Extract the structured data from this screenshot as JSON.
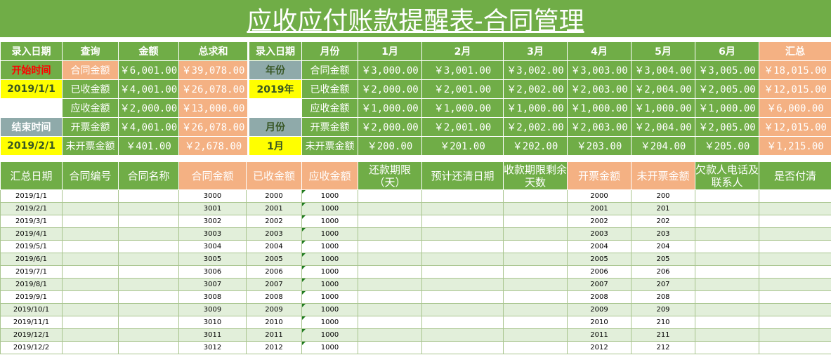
{
  "title": "应收应付账款提醒表-合同管理",
  "left": {
    "headers": [
      "录入日期",
      "查询",
      "金额",
      "总求和"
    ],
    "start_label": "开始时间",
    "start_date": "2019/1/1",
    "end_label": "结束时间",
    "end_date": "2019/2/1",
    "rows": [
      {
        "label": "合同金额",
        "amount": "￥6,001.00",
        "total": "￥39,078.00"
      },
      {
        "label": "已收金额",
        "amount": "￥4,001.00",
        "total": "￥26,078.00"
      },
      {
        "label": "应收金额",
        "amount": "￥2,000.00",
        "total": "￥13,000.00"
      },
      {
        "label": "开票金额",
        "amount": "￥4,001.00",
        "total": "￥26,078.00"
      },
      {
        "label": "未开票金额",
        "amount": "￥401.00",
        "total": "￥2,678.00"
      }
    ]
  },
  "right": {
    "headers": [
      "录入日期",
      "月份",
      "1月",
      "2月",
      "3月",
      "4月",
      "5月",
      "6月",
      "汇总"
    ],
    "year_label": "年份",
    "year_value": "2019年",
    "month_label": "月份",
    "month_value": "1月",
    "rows": [
      {
        "label": "合同金额",
        "values": [
          "￥3,000.00",
          "￥3,001.00",
          "￥3,002.00",
          "￥3,003.00",
          "￥3,004.00",
          "￥3,005.00"
        ],
        "total": "￥18,015.00"
      },
      {
        "label": "已收金额",
        "values": [
          "￥2,000.00",
          "￥2,001.00",
          "￥2,002.00",
          "￥2,003.00",
          "￥2,004.00",
          "￥2,005.00"
        ],
        "total": "￥12,015.00"
      },
      {
        "label": "应收金额",
        "values": [
          "￥1,000.00",
          "￥1,000.00",
          "￥1,000.00",
          "￥1,000.00",
          "￥1,000.00",
          "￥1,000.00"
        ],
        "total": "￥6,000.00"
      },
      {
        "label": "开票金额",
        "values": [
          "￥2,000.00",
          "￥2,001.00",
          "￥2,002.00",
          "￥2,003.00",
          "￥2,004.00",
          "￥2,005.00"
        ],
        "total": "￥12,015.00"
      },
      {
        "label": "未开票金额",
        "values": [
          "￥200.00",
          "￥201.00",
          "￥202.00",
          "￥203.00",
          "￥204.00",
          "￥205.00"
        ],
        "total": "￥1,215.00"
      }
    ]
  },
  "detail": {
    "headers": [
      "汇总日期",
      "合同编号",
      "合同名称",
      "合同金额",
      "已收金额",
      "应收金额",
      "还款期限（天）",
      "预计还清日期",
      "收款期限剩余天数",
      "开票金额",
      "未开票金额",
      "欠款人电话及联系人",
      "是否付清"
    ],
    "rows": [
      [
        "2019/1/1",
        "",
        "",
        "3000",
        "2000",
        "1000",
        "",
        "",
        "",
        "2000",
        "200",
        "",
        ""
      ],
      [
        "2019/2/1",
        "",
        "",
        "3001",
        "2001",
        "1000",
        "",
        "",
        "",
        "2001",
        "201",
        "",
        ""
      ],
      [
        "2019/3/1",
        "",
        "",
        "3002",
        "2002",
        "1000",
        "",
        "",
        "",
        "2002",
        "202",
        "",
        ""
      ],
      [
        "2019/4/1",
        "",
        "",
        "3003",
        "2003",
        "1000",
        "",
        "",
        "",
        "2003",
        "203",
        "",
        ""
      ],
      [
        "2019/5/1",
        "",
        "",
        "3004",
        "2004",
        "1000",
        "",
        "",
        "",
        "2004",
        "204",
        "",
        ""
      ],
      [
        "2019/6/1",
        "",
        "",
        "3005",
        "2005",
        "1000",
        "",
        "",
        "",
        "2005",
        "205",
        "",
        ""
      ],
      [
        "2019/7/1",
        "",
        "",
        "3006",
        "2006",
        "1000",
        "",
        "",
        "",
        "2006",
        "206",
        "",
        ""
      ],
      [
        "2019/8/1",
        "",
        "",
        "3007",
        "2007",
        "1000",
        "",
        "",
        "",
        "2007",
        "207",
        "",
        ""
      ],
      [
        "2019/9/1",
        "",
        "",
        "3008",
        "2008",
        "1000",
        "",
        "",
        "",
        "2008",
        "208",
        "",
        ""
      ],
      [
        "2019/10/1",
        "",
        "",
        "3009",
        "2009",
        "1000",
        "",
        "",
        "",
        "2009",
        "209",
        "",
        ""
      ],
      [
        "2019/11/1",
        "",
        "",
        "3010",
        "2010",
        "1000",
        "",
        "",
        "",
        "2010",
        "210",
        "",
        ""
      ],
      [
        "2019/12/1",
        "",
        "",
        "3011",
        "2011",
        "1000",
        "",
        "",
        "",
        "2011",
        "211",
        "",
        ""
      ],
      [
        "2019/12/2",
        "",
        "",
        "3012",
        "2012",
        "1000",
        "",
        "",
        "",
        "2012",
        "212",
        "",
        ""
      ]
    ]
  }
}
